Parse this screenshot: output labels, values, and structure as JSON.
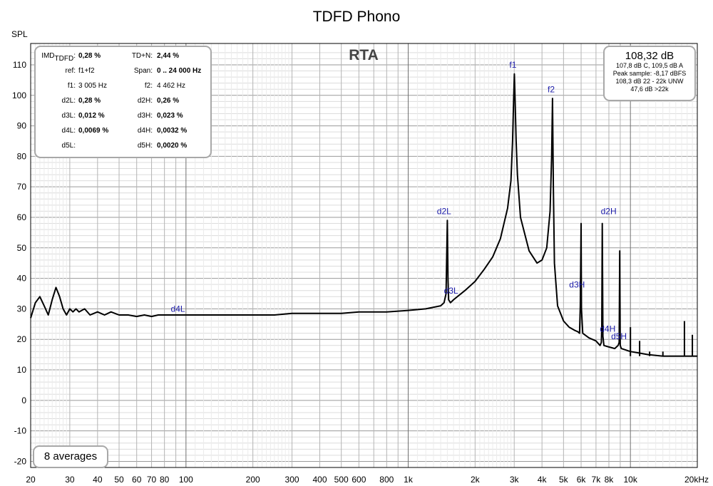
{
  "chart_data": {
    "type": "line",
    "title": "TDFD Phono",
    "ylabel": "SPL",
    "xlabel": "",
    "x_scale": "log",
    "xlim": [
      20,
      20000
    ],
    "ylim": [
      -22,
      117
    ],
    "grid": true,
    "overlay_label": "RTA",
    "x_ticks": [
      {
        "v": 20,
        "label": "20"
      },
      {
        "v": 30,
        "label": "30"
      },
      {
        "v": 40,
        "label": "40"
      },
      {
        "v": 50,
        "label": "50"
      },
      {
        "v": 60,
        "label": "60"
      },
      {
        "v": 70,
        "label": "70"
      },
      {
        "v": 80,
        "label": "80"
      },
      {
        "v": 100,
        "label": "100"
      },
      {
        "v": 200,
        "label": "200"
      },
      {
        "v": 300,
        "label": "300"
      },
      {
        "v": 400,
        "label": "400"
      },
      {
        "v": 500,
        "label": "500"
      },
      {
        "v": 600,
        "label": "600"
      },
      {
        "v": 800,
        "label": "800"
      },
      {
        "v": 1000,
        "label": "1k"
      },
      {
        "v": 2000,
        "label": "2k"
      },
      {
        "v": 3000,
        "label": "3k"
      },
      {
        "v": 4000,
        "label": "4k"
      },
      {
        "v": 5000,
        "label": "5k"
      },
      {
        "v": 6000,
        "label": "6k"
      },
      {
        "v": 7000,
        "label": "7k"
      },
      {
        "v": 8000,
        "label": "8k"
      },
      {
        "v": 10000,
        "label": "10k"
      },
      {
        "v": 20000,
        "label": "20kHz"
      }
    ],
    "y_ticks": [
      110,
      100,
      90,
      80,
      70,
      60,
      50,
      40,
      30,
      20,
      10,
      0,
      -10,
      -20
    ],
    "series": [
      {
        "color": "#000000",
        "x": [
          20,
          21,
          22,
          23,
          24,
          25,
          26,
          27,
          28,
          29,
          30,
          31,
          32,
          33,
          35,
          37,
          40,
          43,
          46,
          50,
          55,
          60,
          65,
          70,
          75,
          80,
          90,
          100,
          120,
          150,
          200,
          250,
          300,
          400,
          500,
          600,
          700,
          800,
          1000,
          1200,
          1400,
          1450,
          1480,
          1500,
          1510,
          1520,
          1550,
          1600,
          1800,
          2000,
          2200,
          2400,
          2600,
          2800,
          2900,
          2950,
          2980,
          3005,
          3030,
          3060,
          3100,
          3200,
          3500,
          3800,
          4000,
          4200,
          4350,
          4420,
          4462,
          4500,
          4550,
          4700,
          5000,
          5300,
          5600,
          5800,
          5900,
          5950,
          6000,
          6020,
          6100,
          6500,
          7000,
          7300,
          7400,
          7430,
          7470,
          7520,
          7600,
          8000,
          8500,
          8800,
          8900,
          8950,
          9000,
          9100,
          10000,
          11000,
          12000,
          14000,
          16000,
          18000,
          20000
        ],
        "y": [
          27,
          32,
          34,
          31,
          28,
          33,
          37,
          34,
          30,
          28,
          30,
          29,
          30,
          29,
          30,
          28,
          29,
          28,
          29,
          28,
          28,
          27.5,
          28,
          27.5,
          28,
          28,
          28,
          28,
          28,
          28,
          28,
          28,
          28.5,
          28.5,
          28.5,
          29,
          29,
          29,
          29.5,
          30,
          31,
          32,
          35,
          59,
          40,
          33,
          32,
          33,
          36,
          39,
          43,
          47,
          53,
          63,
          72,
          85,
          98,
          107,
          97,
          85,
          74,
          60,
          49,
          45,
          46,
          50,
          62,
          80,
          99,
          70,
          45,
          31,
          26,
          24,
          23,
          22.5,
          22,
          31,
          58,
          30,
          22,
          20.5,
          19.5,
          18,
          19,
          24,
          58,
          21,
          18,
          17.5,
          17,
          18,
          19,
          49,
          18,
          17,
          16,
          15.5,
          15,
          14.5,
          14.5,
          14.5,
          14.5
        ]
      }
    ],
    "spikes": [
      {
        "x": 10000,
        "y1": 14.5,
        "y2": 24
      },
      {
        "x": 11000,
        "y1": 14.5,
        "y2": 19.5
      },
      {
        "x": 12200,
        "y1": 14.5,
        "y2": 16
      },
      {
        "x": 14000,
        "y1": 14.5,
        "y2": 16
      },
      {
        "x": 17500,
        "y1": 14.5,
        "y2": 26
      },
      {
        "x": 19000,
        "y1": 14.5,
        "y2": 21.5
      }
    ],
    "annotations": [
      {
        "text": "f1",
        "x": 2960,
        "y": 109
      },
      {
        "text": "f2",
        "x": 4400,
        "y": 101
      },
      {
        "text": "d2L",
        "x": 1450,
        "y": 61
      },
      {
        "text": "d3L",
        "x": 1560,
        "y": 35
      },
      {
        "text": "d3H",
        "x": 5750,
        "y": 37
      },
      {
        "text": "d2H",
        "x": 7980,
        "y": 61
      },
      {
        "text": "d4H",
        "x": 7900,
        "y": 22.5
      },
      {
        "text": "d5H",
        "x": 8880,
        "y": 20
      },
      {
        "text": "d4L",
        "x": 92,
        "y": 29
      }
    ]
  },
  "imd_panel": {
    "rows": [
      {
        "l1": "IMD",
        "l1_sub": "TDFD",
        "v1": "0,28 %",
        "v1_bold": true,
        "l2": "TD+N:",
        "v2": "2,44 %",
        "v2_bold": true
      },
      {
        "l1": "ref:",
        "v1": "f1+f2",
        "v1_bold": false,
        "l2": "Span:",
        "v2": "0 .. 24 000 Hz",
        "v2_bold": true
      },
      {
        "l1": "f1:",
        "v1": "3 005 Hz",
        "v1_bold": false,
        "l2": "f2:",
        "v2": "4 462 Hz",
        "v2_bold": false
      },
      {
        "l1": "d2L:",
        "v1": "0,28 %",
        "v1_bold": true,
        "l2": "d2H:",
        "v2": "0,26 %",
        "v2_bold": true
      },
      {
        "l1": "d3L:",
        "v1": "0,012 %",
        "v1_bold": true,
        "l2": "d3H:",
        "v2": "0,023 %",
        "v2_bold": true
      },
      {
        "l1": "d4L:",
        "v1": "0,0069 %",
        "v1_bold": true,
        "l2": "d4H:",
        "v2": "0,0032 %",
        "v2_bold": true
      },
      {
        "l1": "d5L:",
        "v1": "",
        "v1_bold": false,
        "l2": "d5H:",
        "v2": "0,0020 %",
        "v2_bold": true
      }
    ]
  },
  "spl_panel": {
    "main": "108,32 dB",
    "line1": "107,8 dB C, 109,5 dB A",
    "line2": "Peak sample: -8,17 dBFS",
    "line3": "108,3 dB 22 - 22k UNW",
    "line4": "47,6 dB >22k"
  },
  "averages_label": "8 averages"
}
